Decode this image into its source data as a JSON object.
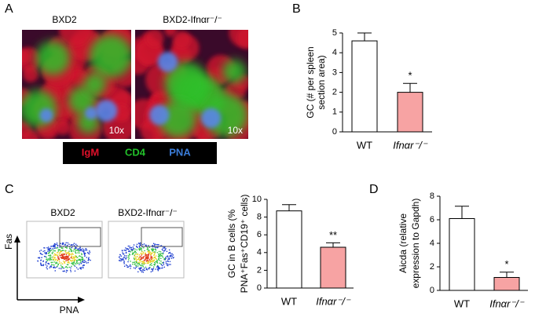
{
  "figure": {
    "panel_labels": [
      "A",
      "B",
      "C",
      "D"
    ],
    "image_titles": [
      "BXD2",
      "BXD2-Ifnαr⁻/⁻"
    ],
    "magnifications": [
      "10x",
      "10x"
    ],
    "stain_legend": [
      {
        "label": "IgM",
        "color": "#e0102a"
      },
      {
        "label": "CD4",
        "color": "#22c02a"
      },
      {
        "label": "PNA",
        "color": "#3a7cd8"
      }
    ],
    "flow_titles": [
      "BXD2",
      "BXD2-Ifnαr⁻/⁻"
    ],
    "flow_axes": {
      "y": "Fas",
      "x": "PNA"
    }
  },
  "chart_data": [
    {
      "type": "bar",
      "ylabel": [
        "GC (# per spleen",
        "section area)"
      ],
      "categories": [
        "WT",
        "Ifnαr⁻/⁻"
      ],
      "values": [
        4.6,
        2.0
      ],
      "errors": [
        0.4,
        0.45
      ],
      "colors": [
        "#ffffff",
        "#f7a3a3"
      ],
      "ylim": [
        0,
        5
      ],
      "yticks": [
        0,
        1,
        2,
        3,
        4,
        5
      ],
      "annotation": "*"
    },
    {
      "type": "bar",
      "ylabel": [
        "GC in B cells (%",
        "PNA⁺Fas⁺CD19⁺ cells)"
      ],
      "categories": [
        "WT",
        "Ifnαr⁻/⁻"
      ],
      "values": [
        8.7,
        4.6
      ],
      "errors": [
        0.7,
        0.5
      ],
      "colors": [
        "#ffffff",
        "#f7a3a3"
      ],
      "ylim": [
        0,
        10
      ],
      "yticks": [
        0,
        2,
        4,
        6,
        8,
        10
      ],
      "annotation": "**"
    },
    {
      "type": "bar",
      "ylabel": [
        "Aicda (relative",
        "expression to Gapdh)"
      ],
      "categories": [
        "WT",
        "Ifnαr⁻/⁻"
      ],
      "values": [
        6.1,
        1.1
      ],
      "errors": [
        1.05,
        0.45
      ],
      "colors": [
        "#ffffff",
        "#f7a3a3"
      ],
      "ylim": [
        0,
        8
      ],
      "yticks": [
        0,
        2,
        4,
        6,
        8
      ],
      "annotation": "*"
    }
  ]
}
